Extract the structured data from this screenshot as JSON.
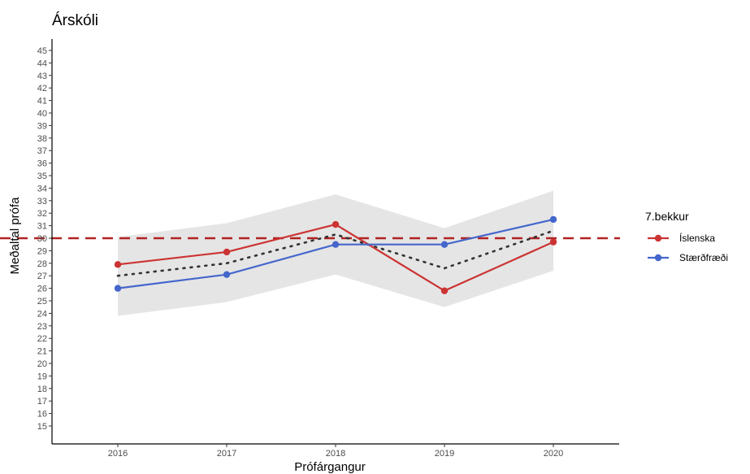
{
  "chart_data": {
    "type": "line",
    "title": "Árskóli",
    "xlabel": "Prófárgangur",
    "ylabel": "Meðaltal prófa",
    "categories": [
      "2016",
      "2017",
      "2018",
      "2019",
      "2020"
    ],
    "ylim": [
      14,
      46
    ],
    "yticks": [
      15,
      16,
      17,
      18,
      19,
      20,
      21,
      22,
      23,
      24,
      25,
      26,
      27,
      28,
      29,
      30,
      31,
      32,
      33,
      34,
      35,
      36,
      37,
      38,
      39,
      40,
      41,
      42,
      43,
      44,
      45
    ],
    "reference_line": 30,
    "legend_title": "7.bekkur",
    "legend_position": "right",
    "grid": false,
    "series": [
      {
        "name": "Íslenska",
        "color": "#cc3333",
        "values": [
          27.9,
          28.9,
          31.1,
          25.8,
          29.7
        ]
      },
      {
        "name": "Stærðfræði",
        "color": "#4466cc",
        "values": [
          26.0,
          27.1,
          29.5,
          29.5,
          31.5
        ]
      }
    ],
    "average": {
      "values": [
        27.0,
        28.0,
        30.3,
        27.6,
        30.6
      ]
    },
    "band": {
      "lower": [
        23.8,
        24.9,
        27.1,
        24.5,
        27.4
      ],
      "upper": [
        30.1,
        31.2,
        33.5,
        30.8,
        33.8
      ]
    },
    "colors": {
      "band": "#e5e5e5",
      "reference": "#b22222",
      "average": "#333333",
      "axis": "#000000"
    }
  }
}
